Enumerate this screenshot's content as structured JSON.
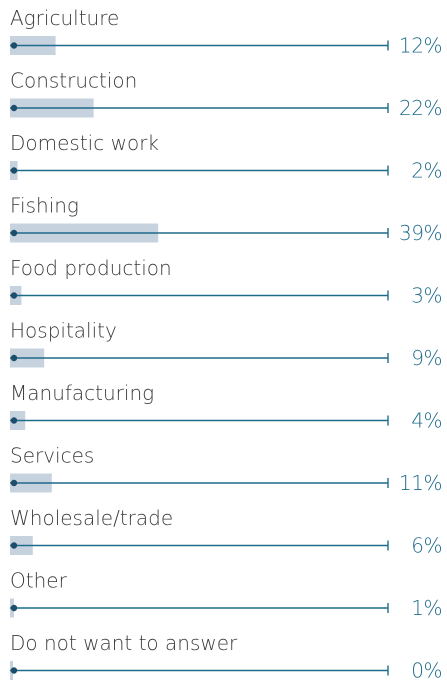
{
  "chart_data": {
    "type": "bar",
    "orientation": "horizontal",
    "categories": [
      "Agriculture",
      "Construction",
      "Domestic work",
      "Fishing",
      "Food production",
      "Hospitality",
      "Manufacturing",
      "Services",
      "Wholesale/trade",
      "Other",
      "Do not want to answer"
    ],
    "values": [
      12,
      22,
      2,
      39,
      3,
      9,
      4,
      11,
      6,
      1,
      0
    ],
    "value_labels": [
      "12%",
      "22%",
      "2%",
      "39%",
      "3%",
      "9%",
      "4%",
      "11%",
      "6%",
      "1%",
      "0%"
    ],
    "unit": "%",
    "xlim": [
      0,
      100
    ],
    "grid": false,
    "legend": "none",
    "colors": {
      "bar": "#c6d3df",
      "line": "#1f6b8a",
      "dot": "#1c4e6b",
      "category_text": "#3a3a3a",
      "value_text": "#1f6b8a"
    }
  }
}
